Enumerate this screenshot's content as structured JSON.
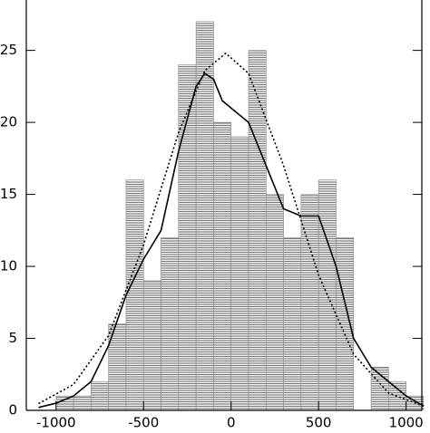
{
  "chart_data": {
    "type": "histogram",
    "bins": [
      -1000,
      -900,
      -800,
      -700,
      -600,
      -500,
      -400,
      -300,
      -200,
      -100,
      0,
      100,
      200,
      300,
      400,
      500,
      600,
      700,
      800,
      900,
      1000,
      1100
    ],
    "counts": [
      1,
      1,
      2,
      6,
      16,
      9,
      12,
      24,
      27,
      20,
      19,
      25,
      15,
      12,
      15,
      16,
      12,
      0,
      3,
      2,
      1
    ],
    "color": "#888888",
    "series": [
      {
        "color": "#000000",
        "style": "solid",
        "x": [
          -1100,
          -1000,
          -900,
          -800,
          -700,
          -600,
          -500,
          -400,
          -300,
          -200,
          -150,
          -100,
          -50,
          0,
          100,
          200,
          300,
          400,
          500,
          600,
          700,
          800,
          900,
          1000,
          1100
        ],
        "values": [
          0.2,
          0.5,
          1,
          2,
          4.5,
          8,
          10.5,
          12.5,
          18,
          22.5,
          23.4,
          23,
          21.5,
          21,
          20,
          17,
          14,
          13.5,
          13.5,
          10,
          5,
          3,
          2,
          1,
          0.3
        ]
      },
      {
        "color": "#000000",
        "style": "dotted",
        "x": [
          -1100,
          -900,
          -700,
          -500,
          -300,
          -150,
          -30,
          100,
          300,
          500,
          700,
          900,
          1100
        ],
        "values": [
          0.47,
          1.8,
          5.2,
          11.5,
          19.3,
          23.6,
          24.8,
          23.4,
          17,
          9.4,
          3.9,
          1.2,
          0.3
        ]
      }
    ],
    "xlim": [
      -1170,
      1090
    ],
    "ylim": [
      0,
      28.5
    ],
    "xticks": [
      -1000,
      -500,
      0,
      500,
      1000
    ],
    "yticks": [
      0,
      5,
      10,
      15,
      20,
      25
    ]
  }
}
